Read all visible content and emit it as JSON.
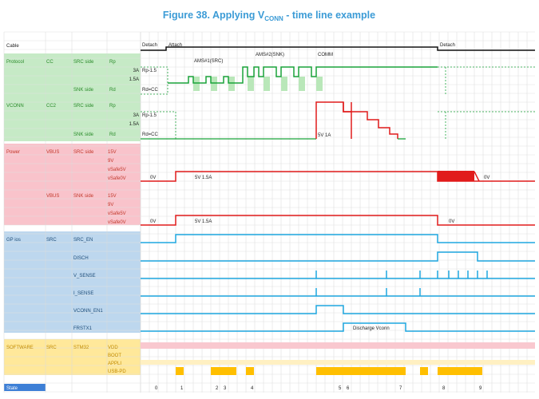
{
  "figure": {
    "prefix": "Figure 38.",
    "title_pre": "Applying V",
    "title_sub": "CONN",
    "title_post": " - time line example"
  },
  "colors": {
    "title": "#3b9bd6",
    "protocol_bg": "#c6eac6",
    "power_bg": "#f9c3cb",
    "gpio_bg": "#bdd7ee",
    "software_bg": "#ffe89a",
    "state_bg": "#3d7fd6",
    "green": "#1aa33a",
    "red": "#e11b1b",
    "blue": "#1ea7e0",
    "orange": "#ffbf00",
    "light_green_pulse": "#b9e7b9",
    "pink_band": "#f9c8cf",
    "cream_band": "#fff0c2"
  },
  "header": {
    "cable": "Cable",
    "state": "State"
  },
  "groups": {
    "protocol": "Protocol",
    "vconn": "VCONN",
    "power": "Power",
    "gpios": "GP ios",
    "software": "SOFTWARE"
  },
  "protocol": {
    "cc": "CC",
    "src_side": "SRC side",
    "snk_side": "SNK side",
    "rp": "Rp",
    "rd": "Rd",
    "lvl_3a": "3A",
    "lvl_15a": "1.5A",
    "rp_15": "Rp-1.5",
    "rd_cc": "Rd=CC"
  },
  "vconn": {
    "cc2": "CC2",
    "src_side": "SRC side",
    "snk_side": "SNK side",
    "rp": "Rp",
    "rd": "Rd",
    "lvl_3a": "3A",
    "lvl_15a": "1.5A",
    "rp_15": "Rp-1.5",
    "rd_cc": "Rd=CC"
  },
  "power": {
    "vbus": "VBUS",
    "src_side": "SRC side",
    "snk_side": "SNK side",
    "levels": [
      "15V",
      "9V",
      "vSafe5V",
      "vSafe0V"
    ]
  },
  "gpio": {
    "src": "SRC",
    "signals": [
      "SRC_EN",
      "DISCH",
      "V_SENSE",
      "I_SENSE",
      "VCONN_EN1",
      "FRSTX1"
    ]
  },
  "software": {
    "src": "SRC",
    "mcu": "STM32",
    "rows": [
      "VDD",
      "BOOT",
      "APPLI",
      "USB-PD"
    ]
  },
  "annotations": {
    "detach_start": "Detach",
    "attach": "Attach",
    "detach_end": "Detach",
    "ams1": "AMS#1(SRC)",
    "ams2": "AMS#2(SNK)",
    "comm": "COMM",
    "vconn_5v1a": "5V 1A",
    "src_0v": "0V",
    "src_5v15a": "5V 1.5A",
    "src_0v_end": "0V",
    "snk_0v": "0V",
    "snk_5v15a": "5V 1.5A",
    "snk_0v_end": "0V",
    "discharge": "Discharge Vconn"
  },
  "states": [
    "0",
    "1",
    "2",
    "3",
    "4",
    "5",
    "6",
    "7",
    "8",
    "9"
  ]
}
